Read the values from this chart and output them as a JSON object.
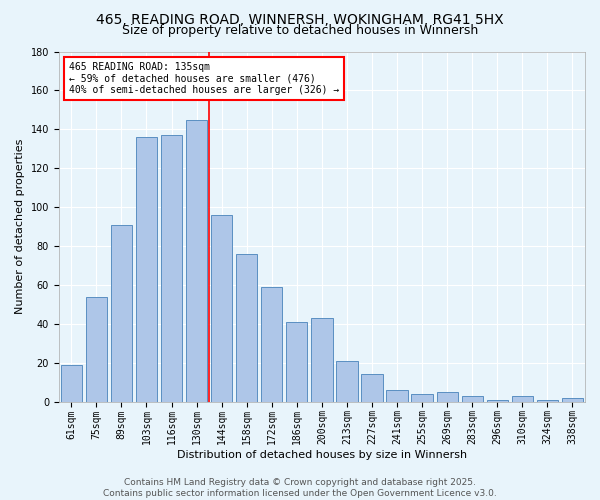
{
  "title1": "465, READING ROAD, WINNERSH, WOKINGHAM, RG41 5HX",
  "title2": "Size of property relative to detached houses in Winnersh",
  "xlabel": "Distribution of detached houses by size in Winnersh",
  "ylabel": "Number of detached properties",
  "categories": [
    "61sqm",
    "75sqm",
    "89sqm",
    "103sqm",
    "116sqm",
    "130sqm",
    "144sqm",
    "158sqm",
    "172sqm",
    "186sqm",
    "200sqm",
    "213sqm",
    "227sqm",
    "241sqm",
    "255sqm",
    "269sqm",
    "283sqm",
    "296sqm",
    "310sqm",
    "324sqm",
    "338sqm"
  ],
  "values": [
    19,
    54,
    91,
    136,
    137,
    145,
    96,
    76,
    59,
    41,
    43,
    21,
    14,
    6,
    4,
    5,
    3,
    1,
    3,
    1,
    2
  ],
  "bar_color": "#aec6e8",
  "bar_edge_color": "#5a8fc2",
  "red_line_index": 5,
  "annotation_text": "465 READING ROAD: 135sqm\n← 59% of detached houses are smaller (476)\n40% of semi-detached houses are larger (326) →",
  "annotation_box_color": "white",
  "annotation_box_edge_color": "red",
  "ylim": [
    0,
    180
  ],
  "yticks": [
    0,
    20,
    40,
    60,
    80,
    100,
    120,
    140,
    160,
    180
  ],
  "background_color": "#e8f4fb",
  "grid_color": "white",
  "footer_text": "Contains HM Land Registry data © Crown copyright and database right 2025.\nContains public sector information licensed under the Open Government Licence v3.0.",
  "title_fontsize": 10,
  "subtitle_fontsize": 9,
  "axis_label_fontsize": 8,
  "tick_fontsize": 7,
  "footer_fontsize": 6.5
}
